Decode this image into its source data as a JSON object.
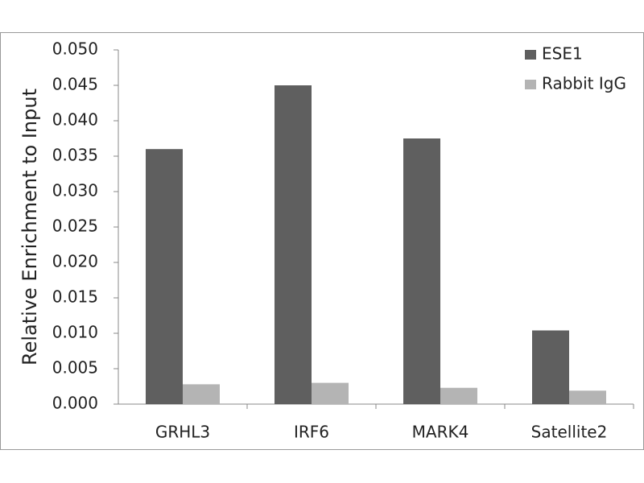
{
  "chart_data": {
    "type": "bar",
    "y_label": "Relative Enrichment to Input",
    "categories": [
      "GRHL3",
      "IRF6",
      "MARK4",
      "Satellite2"
    ],
    "series": [
      {
        "name": "ESE1",
        "color": "#5f5f5f",
        "values": [
          0.036,
          0.045,
          0.0375,
          0.0104
        ]
      },
      {
        "name": "Rabbit IgG",
        "color": "#b4b4b4",
        "values": [
          0.0028,
          0.003,
          0.0023,
          0.0019
        ]
      }
    ],
    "ylim": [
      0,
      0.05
    ],
    "yticks": [
      {
        "value": 0,
        "label": "0.000"
      },
      {
        "value": 0.005,
        "label": "0.005"
      },
      {
        "value": 0.01,
        "label": "0.010"
      },
      {
        "value": 0.015,
        "label": "0.015"
      },
      {
        "value": 0.02,
        "label": "0.020"
      },
      {
        "value": 0.025,
        "label": "0.025"
      },
      {
        "value": 0.03,
        "label": "0.030"
      },
      {
        "value": 0.035,
        "label": "0.035"
      },
      {
        "value": 0.04,
        "label": "0.040"
      },
      {
        "value": 0.045,
        "label": "0.045"
      },
      {
        "value": 0.05,
        "label": "0.050"
      }
    ],
    "grid": false,
    "legend": "top-right"
  }
}
